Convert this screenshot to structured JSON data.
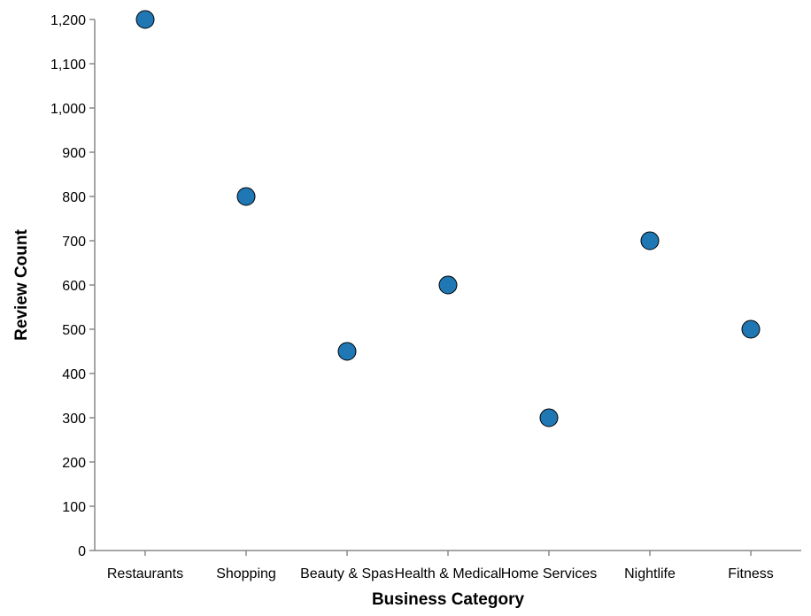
{
  "chart_data": {
    "type": "scatter",
    "categories": [
      "Restaurants",
      "Shopping",
      "Beauty & Spas",
      "Health & Medical",
      "Home Services",
      "Nightlife",
      "Fitness"
    ],
    "values": [
      1200,
      800,
      450,
      600,
      300,
      700,
      500
    ],
    "xlabel": "Business Category",
    "ylabel": "Review Count",
    "ylim": [
      0,
      1200
    ],
    "yticks": [
      "0",
      "100",
      "200",
      "300",
      "400",
      "500",
      "600",
      "700",
      "800",
      "900",
      "1,000",
      "1,100",
      "1,200"
    ],
    "grid": false,
    "point_color": "#1f77b4",
    "point_stroke": "#000000"
  }
}
